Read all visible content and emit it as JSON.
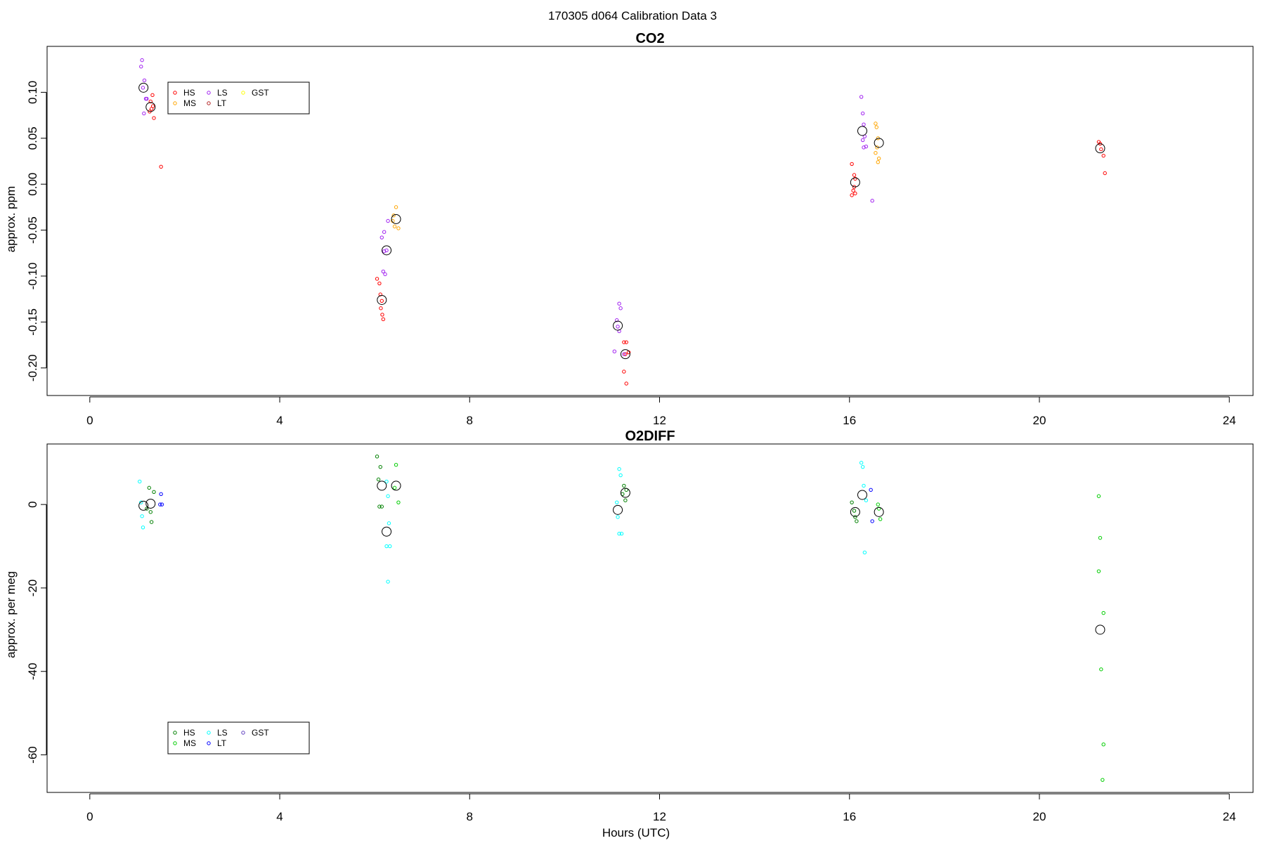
{
  "page_title": "170305   d064   Calibration Data 3",
  "chart_data": [
    {
      "type": "scatter",
      "title": "CO2",
      "xlabel": "",
      "ylabel": "approx. ppm",
      "xlim": [
        -0.9,
        24.5
      ],
      "ylim": [
        -0.23,
        0.15
      ],
      "xticks": [
        0,
        4,
        8,
        12,
        16,
        20,
        24
      ],
      "yticks": [
        -0.2,
        -0.15,
        -0.1,
        -0.05,
        0,
        0.05,
        0.1
      ],
      "ytick_labels": [
        "-0.20",
        "-0.15",
        "-0.10",
        "-0.05",
        "0.00",
        "0.05",
        "0.10"
      ],
      "grid": false,
      "legend_position": "top-left",
      "series": [
        {
          "name": "HS",
          "color": "#ff0000",
          "points": [
            [
              1.3,
              0.082
            ],
            [
              1.32,
              0.097
            ],
            [
              1.28,
              0.09
            ],
            [
              1.35,
              0.072
            ],
            [
              1.26,
              0.079
            ],
            [
              1.33,
              0.085
            ],
            [
              1.5,
              0.019
            ],
            [
              6.05,
              -0.103
            ],
            [
              6.1,
              -0.108
            ],
            [
              6.12,
              -0.12
            ],
            [
              6.15,
              -0.127
            ],
            [
              6.13,
              -0.135
            ],
            [
              6.16,
              -0.142
            ],
            [
              6.18,
              -0.147
            ],
            [
              11.25,
              -0.172
            ],
            [
              11.3,
              -0.172
            ],
            [
              11.28,
              -0.185
            ],
            [
              11.35,
              -0.183
            ],
            [
              11.25,
              -0.204
            ],
            [
              11.3,
              -0.217
            ],
            [
              16.05,
              0.022
            ],
            [
              16.1,
              0.01
            ],
            [
              16.12,
              0.006
            ],
            [
              16.1,
              -0.003
            ],
            [
              16.08,
              -0.007
            ],
            [
              16.12,
              -0.01
            ],
            [
              16.05,
              -0.012
            ],
            [
              21.25,
              0.046
            ],
            [
              21.28,
              0.044
            ],
            [
              21.3,
              0.038
            ],
            [
              21.35,
              0.031
            ],
            [
              21.38,
              0.012
            ]
          ]
        },
        {
          "name": "MS",
          "color": "#ffa500",
          "points": [
            [
              6.45,
              -0.025
            ],
            [
              6.4,
              -0.034
            ],
            [
              6.38,
              -0.04
            ],
            [
              6.42,
              -0.046
            ],
            [
              6.5,
              -0.048
            ],
            [
              16.55,
              0.066
            ],
            [
              16.57,
              0.062
            ],
            [
              16.6,
              0.05
            ],
            [
              16.58,
              0.04
            ],
            [
              16.55,
              0.034
            ],
            [
              16.62,
              0.028
            ],
            [
              16.6,
              0.024
            ]
          ]
        },
        {
          "name": "LS",
          "color": "#a020f0",
          "points": [
            [
              1.1,
              0.135
            ],
            [
              1.08,
              0.128
            ],
            [
              1.15,
              0.113
            ],
            [
              1.12,
              0.105
            ],
            [
              1.18,
              0.093
            ],
            [
              1.2,
              0.093
            ],
            [
              1.14,
              0.077
            ],
            [
              6.28,
              -0.04
            ],
            [
              6.2,
              -0.052
            ],
            [
              6.15,
              -0.058
            ],
            [
              6.25,
              -0.072
            ],
            [
              6.2,
              -0.073
            ],
            [
              6.18,
              -0.095
            ],
            [
              6.22,
              -0.098
            ],
            [
              11.15,
              -0.13
            ],
            [
              11.18,
              -0.135
            ],
            [
              11.1,
              -0.148
            ],
            [
              11.12,
              -0.155
            ],
            [
              11.15,
              -0.16
            ],
            [
              11.05,
              -0.182
            ],
            [
              11.25,
              -0.185
            ],
            [
              16.25,
              0.095
            ],
            [
              16.28,
              0.077
            ],
            [
              16.3,
              0.065
            ],
            [
              16.32,
              0.052
            ],
            [
              16.28,
              0.048
            ],
            [
              16.3,
              0.04
            ],
            [
              16.35,
              0.041
            ],
            [
              16.48,
              -0.018
            ]
          ]
        },
        {
          "name": "LT",
          "color": "#b22222",
          "points": []
        },
        {
          "name": "GST",
          "color": "#ffff00",
          "points": []
        }
      ],
      "means": [
        [
          1.13,
          0.105
        ],
        [
          1.28,
          0.084
        ],
        [
          6.15,
          -0.126
        ],
        [
          6.25,
          -0.072
        ],
        [
          6.45,
          -0.038
        ],
        [
          11.12,
          -0.154
        ],
        [
          11.28,
          -0.185
        ],
        [
          16.12,
          0.002
        ],
        [
          16.27,
          0.058
        ],
        [
          16.62,
          0.045
        ],
        [
          21.28,
          0.039
        ]
      ]
    },
    {
      "type": "scatter",
      "title": "O2DIFF",
      "xlabel": "Hours (UTC)",
      "ylabel": "approx. per meg",
      "xlim": [
        -0.9,
        24.5
      ],
      "ylim": [
        -69,
        14.5
      ],
      "xticks": [
        0,
        4,
        8,
        12,
        16,
        20,
        24
      ],
      "yticks": [
        -60,
        -40,
        -20,
        0
      ],
      "ytick_labels": [
        "-60",
        "-40",
        "-20",
        "0"
      ],
      "grid": false,
      "legend_position": "bottom-left",
      "series": [
        {
          "name": "HS",
          "color": "#008000",
          "points": [
            [
              1.25,
              4.0
            ],
            [
              1.35,
              3.0
            ],
            [
              1.28,
              -1.8
            ],
            [
              1.3,
              -4.2
            ],
            [
              1.2,
              -1.0
            ],
            [
              6.05,
              11.5
            ],
            [
              6.12,
              9.0
            ],
            [
              6.08,
              6.0
            ],
            [
              6.1,
              -0.5
            ],
            [
              6.15,
              -0.5
            ],
            [
              11.25,
              4.5
            ],
            [
              11.3,
              3.5
            ],
            [
              11.28,
              1.0
            ],
            [
              11.22,
              2.5
            ],
            [
              16.05,
              0.5
            ],
            [
              16.1,
              -1.5
            ],
            [
              16.12,
              -3.0
            ],
            [
              16.15,
              -4.0
            ]
          ]
        },
        {
          "name": "MS",
          "color": "#00cd00",
          "points": [
            [
              6.45,
              9.5
            ],
            [
              6.42,
              4.0
            ],
            [
              6.5,
              0.5
            ],
            [
              16.6,
              0.0
            ],
            [
              16.62,
              -1.0
            ],
            [
              16.65,
              -3.5
            ],
            [
              21.25,
              2.0
            ],
            [
              21.28,
              -8.0
            ],
            [
              21.25,
              -16.0
            ],
            [
              21.35,
              -26.0
            ],
            [
              21.3,
              -39.5
            ],
            [
              21.35,
              -57.5
            ],
            [
              21.33,
              -66.0
            ]
          ]
        },
        {
          "name": "LS",
          "color": "#00ffff",
          "points": [
            [
              1.05,
              5.5
            ],
            [
              1.08,
              0.5
            ],
            [
              1.1,
              -2.8
            ],
            [
              1.12,
              -5.5
            ],
            [
              6.25,
              5.5
            ],
            [
              6.28,
              2.0
            ],
            [
              6.3,
              -4.5
            ],
            [
              6.25,
              -10.0
            ],
            [
              6.32,
              -10.0
            ],
            [
              6.28,
              -18.5
            ],
            [
              11.15,
              8.5
            ],
            [
              11.18,
              7.0
            ],
            [
              11.1,
              0.5
            ],
            [
              11.12,
              -3.0
            ],
            [
              11.15,
              -7.0
            ],
            [
              11.2,
              -7.0
            ],
            [
              16.25,
              10.0
            ],
            [
              16.28,
              9.0
            ],
            [
              16.3,
              4.5
            ],
            [
              16.35,
              1.0
            ],
            [
              16.32,
              -11.5
            ]
          ]
        },
        {
          "name": "LT",
          "color": "#0000ff",
          "points": [
            [
              1.5,
              2.5
            ],
            [
              1.48,
              0.0
            ],
            [
              1.52,
              0.0
            ],
            [
              16.45,
              3.5
            ],
            [
              16.48,
              -4.0
            ]
          ]
        },
        {
          "name": "GST",
          "color": "#5f3fbf",
          "points": []
        }
      ],
      "means": [
        [
          1.13,
          -0.3
        ],
        [
          1.28,
          0.2
        ],
        [
          6.15,
          4.5
        ],
        [
          6.25,
          -6.5
        ],
        [
          6.45,
          4.5
        ],
        [
          11.12,
          -1.3
        ],
        [
          11.28,
          2.8
        ],
        [
          16.12,
          -1.8
        ],
        [
          16.27,
          2.3
        ],
        [
          16.62,
          -1.8
        ],
        [
          21.28,
          -30.0
        ]
      ]
    }
  ]
}
